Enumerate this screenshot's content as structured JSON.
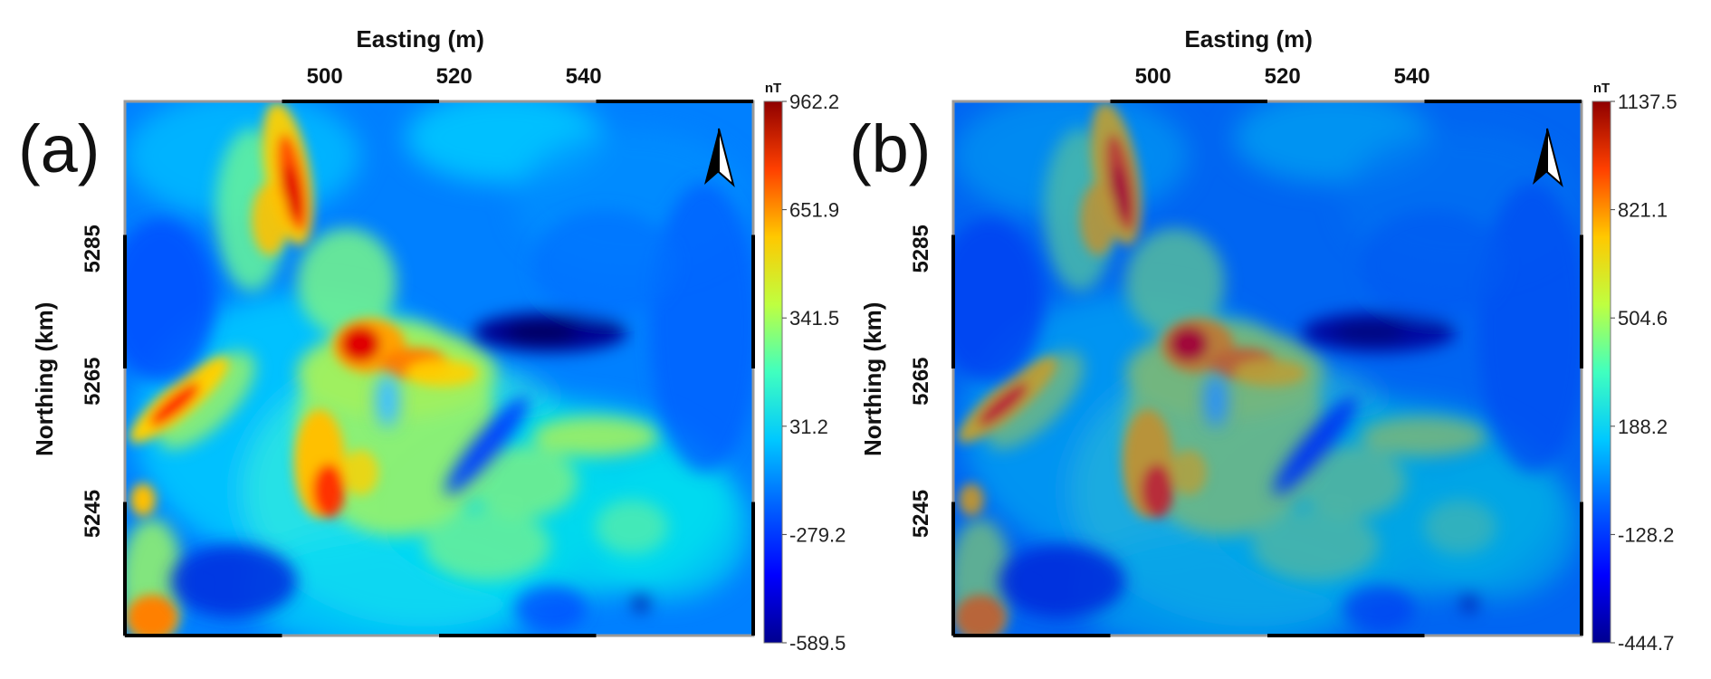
{
  "figure": {
    "panels": [
      {
        "id": "a",
        "label": "(a)",
        "x_axis_title": "Easting (m)",
        "y_axis_title": "Northing (km)",
        "x_ticks": [
          "500",
          "520",
          "540"
        ],
        "y_ticks": [
          "5285",
          "5265",
          "5245"
        ],
        "colorbar": {
          "unit": "nT",
          "ticks": [
            "962.2",
            "651.9",
            "341.5",
            "31.2",
            "-279.2",
            "-589.5"
          ],
          "min": -589.5,
          "max": 962.2
        },
        "north_arrow": "north-arrow-icon"
      },
      {
        "id": "b",
        "label": "(b)",
        "x_axis_title": "Easting (m)",
        "y_axis_title": "Northing (km)",
        "x_ticks": [
          "500",
          "520",
          "540"
        ],
        "y_ticks": [
          "5285",
          "5265",
          "5245"
        ],
        "colorbar": {
          "unit": "nT",
          "ticks": [
            "1137.5",
            "821.1",
            "504.6",
            "188.2",
            "-128.2",
            "-444.7"
          ],
          "min": -444.7,
          "max": 1137.5
        },
        "north_arrow": "north-arrow-icon"
      }
    ],
    "colormap": [
      "#00008f",
      "#0000ff",
      "#0080ff",
      "#00ffff",
      "#80ff80",
      "#ffff00",
      "#ff8000",
      "#ff0000",
      "#800000"
    ]
  }
}
